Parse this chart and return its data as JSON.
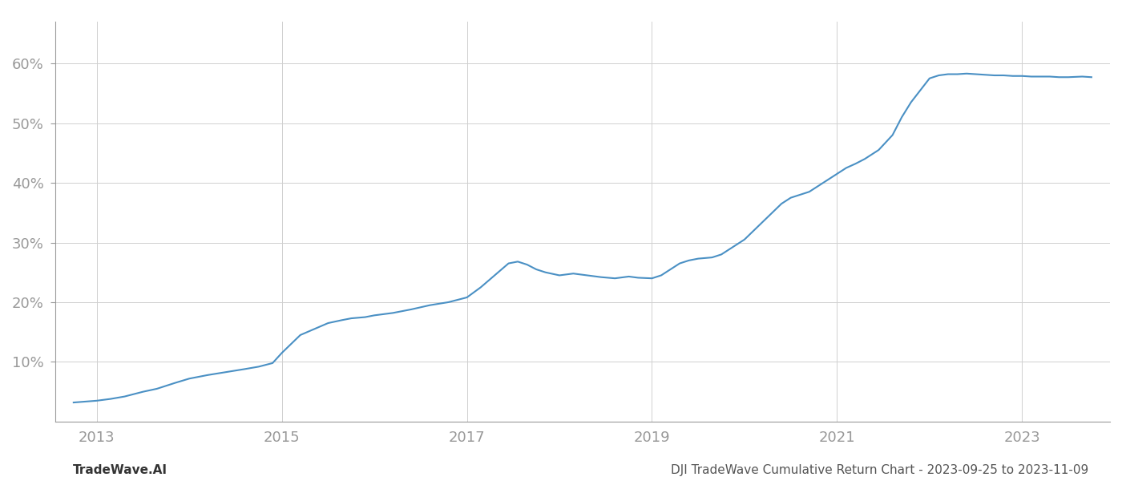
{
  "title": "",
  "footer_left": "TradeWave.AI",
  "footer_right": "DJI TradeWave Cumulative Return Chart - 2023-09-25 to 2023-11-09",
  "line_color": "#4a90c4",
  "background_color": "#ffffff",
  "grid_color": "#d0d0d0",
  "x_years": [
    2013,
    2015,
    2017,
    2019,
    2021,
    2023
  ],
  "data_points": [
    [
      2012.75,
      3.2
    ],
    [
      2013.0,
      3.5
    ],
    [
      2013.15,
      3.8
    ],
    [
      2013.3,
      4.2
    ],
    [
      2013.5,
      5.0
    ],
    [
      2013.65,
      5.5
    ],
    [
      2013.75,
      6.0
    ],
    [
      2013.85,
      6.5
    ],
    [
      2014.0,
      7.2
    ],
    [
      2014.2,
      7.8
    ],
    [
      2014.4,
      8.3
    ],
    [
      2014.6,
      8.8
    ],
    [
      2014.75,
      9.2
    ],
    [
      2014.9,
      9.8
    ],
    [
      2015.0,
      11.5
    ],
    [
      2015.1,
      13.0
    ],
    [
      2015.2,
      14.5
    ],
    [
      2015.35,
      15.5
    ],
    [
      2015.5,
      16.5
    ],
    [
      2015.65,
      17.0
    ],
    [
      2015.75,
      17.3
    ],
    [
      2015.9,
      17.5
    ],
    [
      2016.0,
      17.8
    ],
    [
      2016.2,
      18.2
    ],
    [
      2016.4,
      18.8
    ],
    [
      2016.6,
      19.5
    ],
    [
      2016.8,
      20.0
    ],
    [
      2017.0,
      20.8
    ],
    [
      2017.15,
      22.5
    ],
    [
      2017.3,
      24.5
    ],
    [
      2017.45,
      26.5
    ],
    [
      2017.55,
      26.8
    ],
    [
      2017.65,
      26.3
    ],
    [
      2017.75,
      25.5
    ],
    [
      2017.85,
      25.0
    ],
    [
      2018.0,
      24.5
    ],
    [
      2018.15,
      24.8
    ],
    [
      2018.3,
      24.5
    ],
    [
      2018.45,
      24.2
    ],
    [
      2018.6,
      24.0
    ],
    [
      2018.75,
      24.3
    ],
    [
      2018.85,
      24.1
    ],
    [
      2019.0,
      24.0
    ],
    [
      2019.1,
      24.5
    ],
    [
      2019.2,
      25.5
    ],
    [
      2019.3,
      26.5
    ],
    [
      2019.4,
      27.0
    ],
    [
      2019.5,
      27.3
    ],
    [
      2019.65,
      27.5
    ],
    [
      2019.75,
      28.0
    ],
    [
      2019.85,
      29.0
    ],
    [
      2020.0,
      30.5
    ],
    [
      2020.1,
      32.0
    ],
    [
      2020.2,
      33.5
    ],
    [
      2020.3,
      35.0
    ],
    [
      2020.4,
      36.5
    ],
    [
      2020.5,
      37.5
    ],
    [
      2020.6,
      38.0
    ],
    [
      2020.7,
      38.5
    ],
    [
      2020.8,
      39.5
    ],
    [
      2020.9,
      40.5
    ],
    [
      2021.0,
      41.5
    ],
    [
      2021.05,
      42.0
    ],
    [
      2021.1,
      42.5
    ],
    [
      2021.2,
      43.2
    ],
    [
      2021.3,
      44.0
    ],
    [
      2021.45,
      45.5
    ],
    [
      2021.6,
      48.0
    ],
    [
      2021.7,
      51.0
    ],
    [
      2021.8,
      53.5
    ],
    [
      2021.9,
      55.5
    ],
    [
      2022.0,
      57.5
    ],
    [
      2022.1,
      58.0
    ],
    [
      2022.2,
      58.2
    ],
    [
      2022.3,
      58.2
    ],
    [
      2022.4,
      58.3
    ],
    [
      2022.5,
      58.2
    ],
    [
      2022.6,
      58.1
    ],
    [
      2022.7,
      58.0
    ],
    [
      2022.8,
      58.0
    ],
    [
      2022.9,
      57.9
    ],
    [
      2023.0,
      57.9
    ],
    [
      2023.1,
      57.8
    ],
    [
      2023.2,
      57.8
    ],
    [
      2023.3,
      57.8
    ],
    [
      2023.4,
      57.7
    ],
    [
      2023.5,
      57.7
    ],
    [
      2023.65,
      57.8
    ],
    [
      2023.75,
      57.7
    ]
  ],
  "ylim": [
    0,
    67
  ],
  "xlim": [
    2012.55,
    2023.95
  ],
  "yticks": [
    10,
    20,
    30,
    40,
    50,
    60
  ],
  "ytick_labels": [
    "10%",
    "20%",
    "30%",
    "40%",
    "50%",
    "60%"
  ],
  "footer_fontsize": 11,
  "tick_fontsize": 13,
  "tick_color": "#999999",
  "spine_color": "#999999"
}
